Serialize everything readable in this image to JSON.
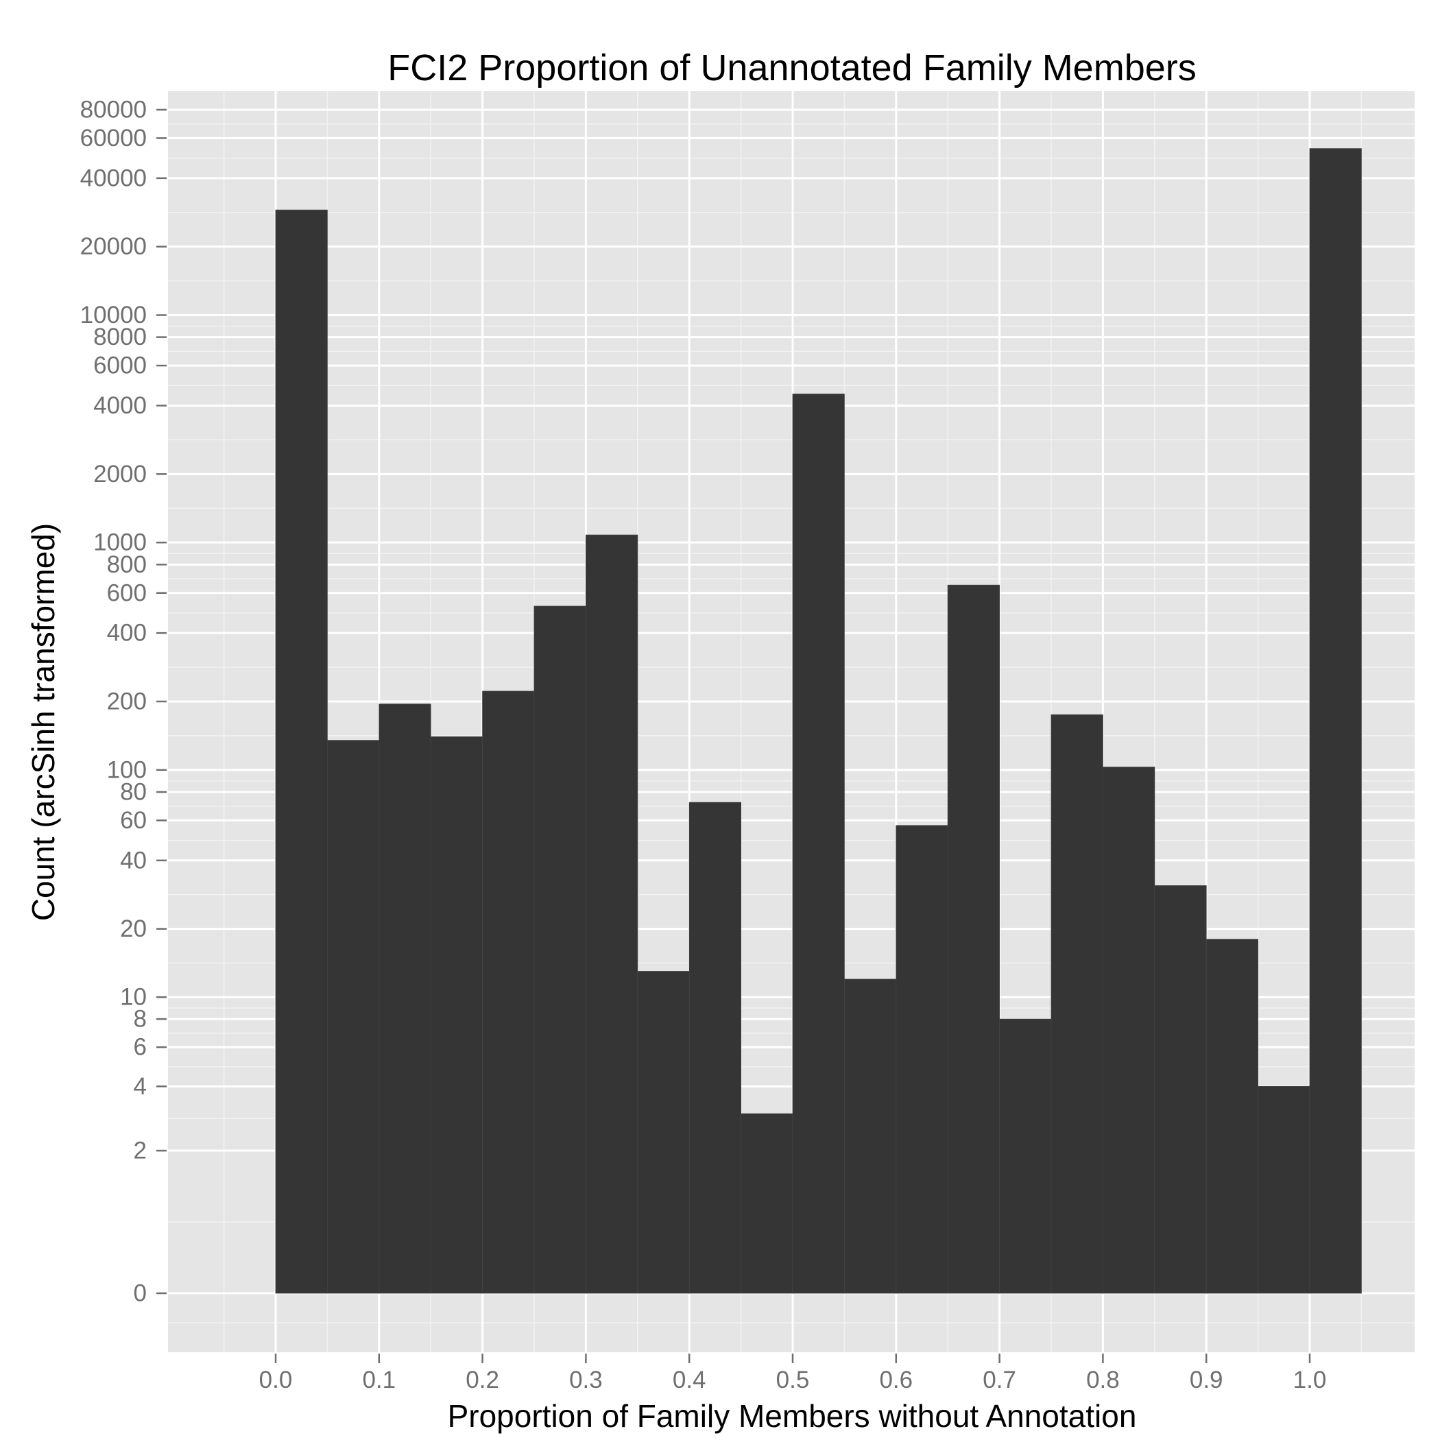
{
  "chart_data": {
    "type": "bar",
    "title": "FCI2 Proportion of Unannotated Family Members",
    "xlabel": "Proportion of Family Members without Annotation",
    "ylabel": "Count (arcSinh transformed)",
    "y_scale": "arcsinh",
    "grid": true,
    "x_range": [
      -0.105,
      1.105
    ],
    "y_range": [
      0,
      80000
    ],
    "bin_width": 0.05,
    "bins": [
      {
        "x0": 0.0,
        "x1": 0.05,
        "count": 29000
      },
      {
        "x0": 0.05,
        "x1": 0.1,
        "count": 135
      },
      {
        "x0": 0.1,
        "x1": 0.15,
        "count": 195
      },
      {
        "x0": 0.15,
        "x1": 0.2,
        "count": 140
      },
      {
        "x0": 0.2,
        "x1": 0.25,
        "count": 222
      },
      {
        "x0": 0.25,
        "x1": 0.3,
        "count": 525
      },
      {
        "x0": 0.3,
        "x1": 0.35,
        "count": 1080
      },
      {
        "x0": 0.35,
        "x1": 0.4,
        "count": 13
      },
      {
        "x0": 0.4,
        "x1": 0.45,
        "count": 72
      },
      {
        "x0": 0.45,
        "x1": 0.5,
        "count": 3
      },
      {
        "x0": 0.5,
        "x1": 0.55,
        "count": 4500
      },
      {
        "x0": 0.55,
        "x1": 0.6,
        "count": 12
      },
      {
        "x0": 0.6,
        "x1": 0.65,
        "count": 57
      },
      {
        "x0": 0.65,
        "x1": 0.7,
        "count": 650
      },
      {
        "x0": 0.7,
        "x1": 0.75,
        "count": 8
      },
      {
        "x0": 0.75,
        "x1": 0.8,
        "count": 175
      },
      {
        "x0": 0.8,
        "x1": 0.85,
        "count": 103
      },
      {
        "x0": 0.85,
        "x1": 0.9,
        "count": 31
      },
      {
        "x0": 0.9,
        "x1": 0.95,
        "count": 18
      },
      {
        "x0": 0.95,
        "x1": 1.0,
        "count": 4
      },
      {
        "x0": 1.0,
        "x1": 1.05,
        "count": 54000
      }
    ],
    "x_ticks": [
      {
        "value": 0.0,
        "label": "0.0"
      },
      {
        "value": 0.1,
        "label": "0.1"
      },
      {
        "value": 0.2,
        "label": "0.2"
      },
      {
        "value": 0.3,
        "label": "0.3"
      },
      {
        "value": 0.4,
        "label": "0.4"
      },
      {
        "value": 0.5,
        "label": "0.5"
      },
      {
        "value": 0.6,
        "label": "0.6"
      },
      {
        "value": 0.7,
        "label": "0.7"
      },
      {
        "value": 0.8,
        "label": "0.8"
      },
      {
        "value": 0.9,
        "label": "0.9"
      },
      {
        "value": 1.0,
        "label": "1.0"
      }
    ],
    "y_ticks": [
      {
        "value": 0,
        "label": "0"
      },
      {
        "value": 2,
        "label": "2"
      },
      {
        "value": 4,
        "label": "4"
      },
      {
        "value": 6,
        "label": "6"
      },
      {
        "value": 8,
        "label": "8"
      },
      {
        "value": 10,
        "label": "10"
      },
      {
        "value": 20,
        "label": "20"
      },
      {
        "value": 40,
        "label": "40"
      },
      {
        "value": 60,
        "label": "60"
      },
      {
        "value": 80,
        "label": "80"
      },
      {
        "value": 100,
        "label": "100"
      },
      {
        "value": 200,
        "label": "200"
      },
      {
        "value": 400,
        "label": "400"
      },
      {
        "value": 600,
        "label": "600"
      },
      {
        "value": 800,
        "label": "800"
      },
      {
        "value": 1000,
        "label": "1000"
      },
      {
        "value": 2000,
        "label": "2000"
      },
      {
        "value": 4000,
        "label": "4000"
      },
      {
        "value": 6000,
        "label": "6000"
      },
      {
        "value": 8000,
        "label": "8000"
      },
      {
        "value": 10000,
        "label": "10000"
      },
      {
        "value": 20000,
        "label": "20000"
      },
      {
        "value": 40000,
        "label": "40000"
      },
      {
        "value": 60000,
        "label": "60000"
      },
      {
        "value": 80000,
        "label": "80000"
      }
    ],
    "colors": {
      "panel": "#e5e5e5",
      "grid_major": "#ffffff",
      "grid_minor": "#f2f2f2",
      "bar_fill": "#353535",
      "bar_outline": "#444444",
      "tick_text": "#6f6f6f",
      "tick_mark": "#6f6f6f",
      "title_text": "#000000"
    }
  }
}
